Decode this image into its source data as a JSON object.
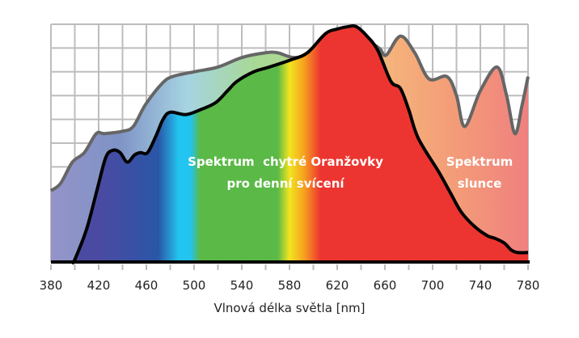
{
  "chart_data": {
    "type": "area",
    "title": "",
    "xlabel": "Vlnová délka světla [nm]",
    "ylabel": "",
    "xlim": [
      380,
      780
    ],
    "ylim": [
      0,
      100
    ],
    "x_ticks": [
      380,
      420,
      460,
      500,
      540,
      580,
      620,
      660,
      700,
      740,
      780
    ],
    "grid": true,
    "series": [
      {
        "name": "Spektrum slunce",
        "name_lines": [
          "Spektrum",
          "slunce"
        ],
        "stroke": "#666666",
        "points": [
          [
            380,
            30
          ],
          [
            388,
            33
          ],
          [
            398,
            42
          ],
          [
            408,
            46
          ],
          [
            418,
            54
          ],
          [
            425,
            54
          ],
          [
            440,
            55
          ],
          [
            449,
            57
          ],
          [
            459,
            66
          ],
          [
            473,
            75
          ],
          [
            482,
            78
          ],
          [
            500,
            80
          ],
          [
            520,
            82
          ],
          [
            540,
            86
          ],
          [
            560,
            88
          ],
          [
            570,
            88
          ],
          [
            584,
            86
          ],
          [
            600,
            88
          ],
          [
            620,
            92
          ],
          [
            640,
            94
          ],
          [
            655,
            90
          ],
          [
            661,
            87
          ],
          [
            673,
            95
          ],
          [
            685,
            88
          ],
          [
            697,
            77
          ],
          [
            712,
            78
          ],
          [
            720,
            70
          ],
          [
            727,
            57
          ],
          [
            740,
            72
          ],
          [
            754,
            82
          ],
          [
            762,
            70
          ],
          [
            769,
            54
          ],
          [
            775,
            66
          ],
          [
            780,
            78
          ]
        ]
      },
      {
        "name": "Spektrum chytré Oranžovky pro denní svícení",
        "name_lines": [
          "Spektrum  chytré Oranžovky",
          "pro denní svícení"
        ],
        "stroke": "#000000",
        "points": [
          [
            398,
            0
          ],
          [
            400,
            1
          ],
          [
            410,
            14
          ],
          [
            419,
            31
          ],
          [
            426,
            44
          ],
          [
            432,
            47
          ],
          [
            438,
            46
          ],
          [
            444,
            42
          ],
          [
            450,
            45
          ],
          [
            455,
            46
          ],
          [
            461,
            46
          ],
          [
            468,
            53
          ],
          [
            474,
            60
          ],
          [
            480,
            63
          ],
          [
            493,
            62
          ],
          [
            505,
            64
          ],
          [
            518,
            67
          ],
          [
            528,
            72
          ],
          [
            536,
            76
          ],
          [
            550,
            80
          ],
          [
            563,
            82
          ],
          [
            581,
            85
          ],
          [
            595,
            88
          ],
          [
            610,
            96
          ],
          [
            620,
            98
          ],
          [
            629,
            99
          ],
          [
            636,
            99
          ],
          [
            645,
            95
          ],
          [
            654,
            89
          ],
          [
            665,
            76
          ],
          [
            673,
            73
          ],
          [
            680,
            64
          ],
          [
            688,
            52
          ],
          [
            705,
            38
          ],
          [
            715,
            29
          ],
          [
            724,
            21
          ],
          [
            735,
            15
          ],
          [
            746,
            11
          ],
          [
            752,
            10
          ],
          [
            760,
            8
          ],
          [
            766,
            5
          ],
          [
            771,
            4
          ],
          [
            780,
            4
          ]
        ]
      }
    ],
    "colors": {
      "grid": "#bdbdbd",
      "spectrum": [
        "#4b4aa2",
        "#2a56a6",
        "#22c4f0",
        "#5bb947",
        "#5bb947",
        "#f2e51f",
        "#f6a21f",
        "#ec3530",
        "#ec3530"
      ],
      "sun_fill": [
        "#9393c8",
        "#7f93c6",
        "#a6d4e2",
        "#a8d894",
        "#b3d990",
        "#f5b27a",
        "#f39a78",
        "#f08080"
      ]
    }
  }
}
